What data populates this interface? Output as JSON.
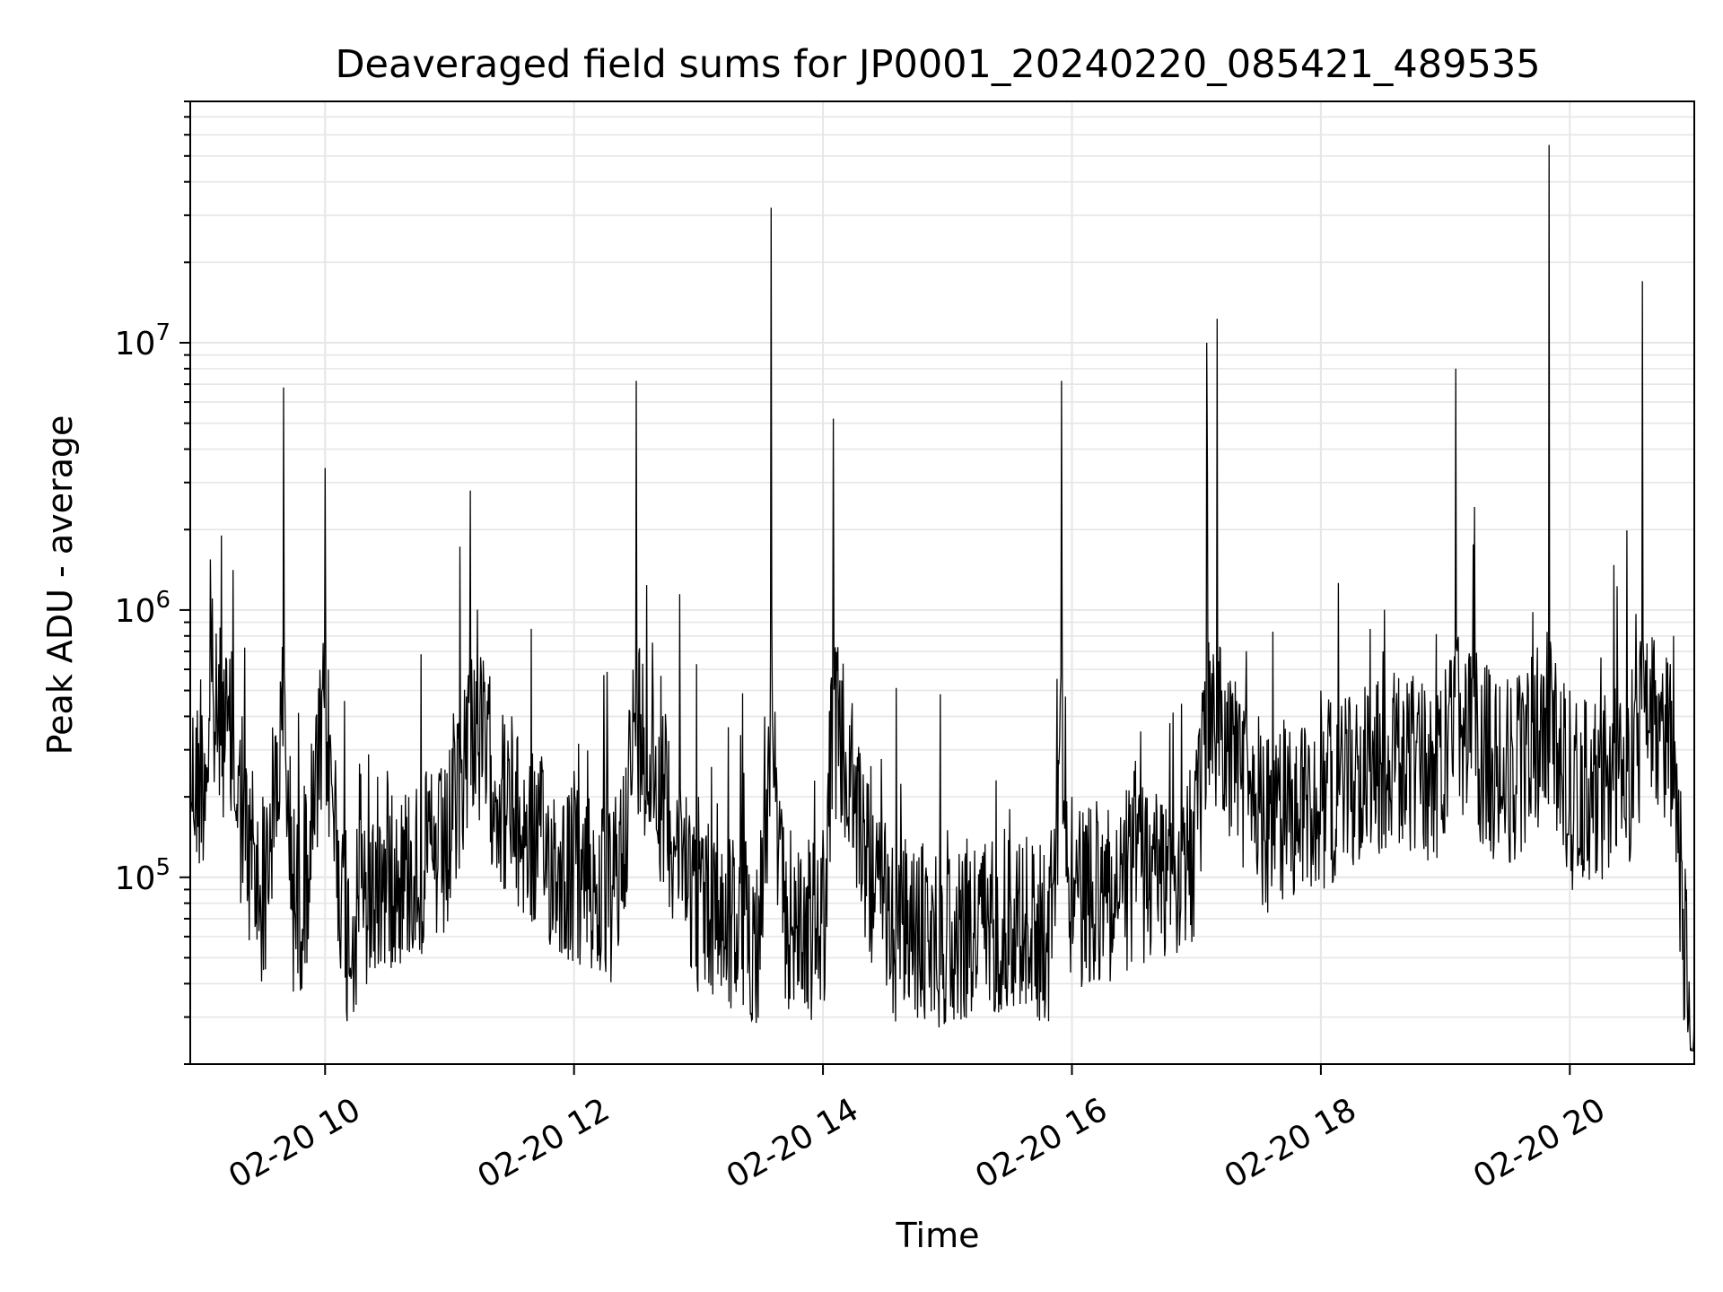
{
  "chart_data": {
    "type": "line",
    "title": "Deaveraged field sums for JP0001_20240220_085421_489535",
    "xlabel": "Time",
    "ylabel": "Peak ADU - average",
    "x_scale": "time",
    "y_scale": "log",
    "xlim": [
      "2024-02-20T08:55",
      "2024-02-20T21:00"
    ],
    "ylim": [
      20000,
      80000000
    ],
    "x_ticks": [
      "02-20 10",
      "02-20 12",
      "02-20 14",
      "02-20 16",
      "02-20 18",
      "02-20 20"
    ],
    "y_ticks": [
      {
        "base": "10",
        "exp": "5"
      },
      {
        "base": "10",
        "exp": "6"
      },
      {
        "base": "10",
        "exp": "7"
      }
    ],
    "grid": true,
    "line_color": "#000000",
    "grid_color": "#e6e6e6",
    "series": [
      {
        "x": [
          "2024-02-20T08:55",
          "2024-02-20T09:00",
          "2024-02-20T09:05",
          "2024-02-20T09:10",
          "2024-02-20T09:15",
          "2024-02-20T09:20",
          "2024-02-20T09:25",
          "2024-02-20T09:30",
          "2024-02-20T09:40",
          "2024-02-20T09:45",
          "2024-02-20T09:50",
          "2024-02-20T10:00",
          "2024-02-20T10:10",
          "2024-02-20T10:30",
          "2024-02-20T11:00",
          "2024-02-20T11:10",
          "2024-02-20T11:30",
          "2024-02-20T12:00",
          "2024-02-20T12:20",
          "2024-02-20T12:30",
          "2024-02-20T13:00",
          "2024-02-20T13:30",
          "2024-02-20T13:35",
          "2024-02-20T13:40",
          "2024-02-20T14:00",
          "2024-02-20T14:05",
          "2024-02-20T14:30",
          "2024-02-20T15:00",
          "2024-02-20T15:30",
          "2024-02-20T15:50",
          "2024-02-20T15:55",
          "2024-02-20T16:00",
          "2024-02-20T16:30",
          "2024-02-20T17:00",
          "2024-02-20T17:05",
          "2024-02-20T17:10",
          "2024-02-20T17:30",
          "2024-02-20T18:00",
          "2024-02-20T18:30",
          "2024-02-20T19:00",
          "2024-02-20T19:05",
          "2024-02-20T19:30",
          "2024-02-20T19:50",
          "2024-02-20T20:00",
          "2024-02-20T20:30",
          "2024-02-20T20:35",
          "2024-02-20T20:50",
          "2024-02-20T21:00"
        ],
        "y": [
          600000,
          550000,
          900000,
          1900000,
          700000,
          400000,
          250000,
          200000,
          6800000,
          180000,
          220000,
          3400000,
          150000,
          250000,
          300000,
          2800000,
          400000,
          250000,
          200000,
          7200000,
          200000,
          150000,
          32000000,
          180000,
          150000,
          5200000,
          160000,
          150000,
          180000,
          150000,
          7200000,
          200000,
          250000,
          300000,
          10000000,
          12300000,
          400000,
          500000,
          700000,
          600000,
          8000000,
          550000,
          55000000,
          500000,
          600000,
          17000000,
          800000,
          30000
        ]
      }
    ]
  }
}
